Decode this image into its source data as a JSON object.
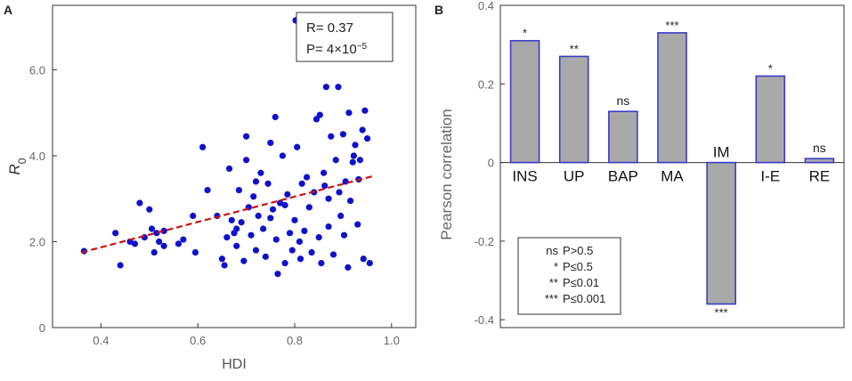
{
  "chart_data": [
    {
      "type": "scatter",
      "panel_label": "A",
      "xlabel": "HDI",
      "ylabel_main": "R",
      "ylabel_sub": "0",
      "xlim": [
        0.3,
        1.05
      ],
      "ylim": [
        0,
        7.5
      ],
      "xticks": [
        0.4,
        0.6,
        0.8,
        1.0
      ],
      "xtick_labels": [
        "0.4",
        "0.6",
        "0.8",
        "1.0"
      ],
      "yticks": [
        0,
        2,
        4,
        6
      ],
      "ytick_labels": [
        "0",
        "2.0",
        "4.0",
        "6.0"
      ],
      "point_color": "#1010cc",
      "fit_color": "#cc1111",
      "fit_line": {
        "x": [
          0.36,
          0.96
        ],
        "y": [
          1.75,
          3.52
        ]
      },
      "stats": {
        "r_text": "R= 0.37",
        "p_prefix": "P= 4×10",
        "p_exponent": "−5"
      },
      "points": [
        {
          "x": 0.365,
          "y": 1.78
        },
        {
          "x": 0.43,
          "y": 2.2
        },
        {
          "x": 0.44,
          "y": 1.45
        },
        {
          "x": 0.46,
          "y": 2.0
        },
        {
          "x": 0.47,
          "y": 1.95
        },
        {
          "x": 0.48,
          "y": 2.9
        },
        {
          "x": 0.49,
          "y": 2.1
        },
        {
          "x": 0.5,
          "y": 2.75
        },
        {
          "x": 0.505,
          "y": 2.3
        },
        {
          "x": 0.51,
          "y": 1.75
        },
        {
          "x": 0.515,
          "y": 2.2
        },
        {
          "x": 0.52,
          "y": 2.0
        },
        {
          "x": 0.53,
          "y": 2.25
        },
        {
          "x": 0.53,
          "y": 1.9
        },
        {
          "x": 0.56,
          "y": 1.95
        },
        {
          "x": 0.57,
          "y": 2.05
        },
        {
          "x": 0.59,
          "y": 2.6
        },
        {
          "x": 0.595,
          "y": 1.75
        },
        {
          "x": 0.61,
          "y": 4.2
        },
        {
          "x": 0.62,
          "y": 3.2
        },
        {
          "x": 0.64,
          "y": 2.6
        },
        {
          "x": 0.65,
          "y": 1.6
        },
        {
          "x": 0.655,
          "y": 1.45
        },
        {
          "x": 0.66,
          "y": 2.1
        },
        {
          "x": 0.665,
          "y": 3.7
        },
        {
          "x": 0.67,
          "y": 2.5
        },
        {
          "x": 0.675,
          "y": 2.2
        },
        {
          "x": 0.68,
          "y": 1.9
        },
        {
          "x": 0.685,
          "y": 3.2
        },
        {
          "x": 0.69,
          "y": 2.45
        },
        {
          "x": 0.695,
          "y": 1.55
        },
        {
          "x": 0.7,
          "y": 4.45
        },
        {
          "x": 0.7,
          "y": 3.9
        },
        {
          "x": 0.705,
          "y": 2.8
        },
        {
          "x": 0.71,
          "y": 2.15
        },
        {
          "x": 0.715,
          "y": 3.05
        },
        {
          "x": 0.72,
          "y": 1.8
        },
        {
          "x": 0.725,
          "y": 2.6
        },
        {
          "x": 0.73,
          "y": 3.6
        },
        {
          "x": 0.735,
          "y": 2.3
        },
        {
          "x": 0.74,
          "y": 1.65
        },
        {
          "x": 0.745,
          "y": 3.35
        },
        {
          "x": 0.75,
          "y": 4.3
        },
        {
          "x": 0.755,
          "y": 2.75
        },
        {
          "x": 0.76,
          "y": 4.9
        },
        {
          "x": 0.762,
          "y": 2.05
        },
        {
          "x": 0.765,
          "y": 1.25
        },
        {
          "x": 0.77,
          "y": 2.9
        },
        {
          "x": 0.775,
          "y": 4.0
        },
        {
          "x": 0.78,
          "y": 1.5
        },
        {
          "x": 0.785,
          "y": 3.1
        },
        {
          "x": 0.79,
          "y": 2.2
        },
        {
          "x": 0.795,
          "y": 1.8
        },
        {
          "x": 0.8,
          "y": 2.5
        },
        {
          "x": 0.802,
          "y": 7.15
        },
        {
          "x": 0.805,
          "y": 4.2
        },
        {
          "x": 0.81,
          "y": 2.0
        },
        {
          "x": 0.812,
          "y": 1.6
        },
        {
          "x": 0.815,
          "y": 3.35
        },
        {
          "x": 0.82,
          "y": 2.25
        },
        {
          "x": 0.825,
          "y": 3.5
        },
        {
          "x": 0.83,
          "y": 2.8
        },
        {
          "x": 0.835,
          "y": 1.75
        },
        {
          "x": 0.84,
          "y": 3.15
        },
        {
          "x": 0.845,
          "y": 4.85
        },
        {
          "x": 0.85,
          "y": 2.1
        },
        {
          "x": 0.852,
          "y": 4.95
        },
        {
          "x": 0.855,
          "y": 1.5
        },
        {
          "x": 0.86,
          "y": 3.6
        },
        {
          "x": 0.862,
          "y": 3.3
        },
        {
          "x": 0.865,
          "y": 5.6
        },
        {
          "x": 0.87,
          "y": 2.35
        },
        {
          "x": 0.875,
          "y": 4.45
        },
        {
          "x": 0.88,
          "y": 1.7
        },
        {
          "x": 0.885,
          "y": 3.9
        },
        {
          "x": 0.89,
          "y": 5.6
        },
        {
          "x": 0.892,
          "y": 3.15
        },
        {
          "x": 0.895,
          "y": 2.6
        },
        {
          "x": 0.9,
          "y": 4.5
        },
        {
          "x": 0.902,
          "y": 2.15
        },
        {
          "x": 0.905,
          "y": 3.4
        },
        {
          "x": 0.91,
          "y": 1.4
        },
        {
          "x": 0.912,
          "y": 5.0
        },
        {
          "x": 0.915,
          "y": 2.95
        },
        {
          "x": 0.92,
          "y": 3.85
        },
        {
          "x": 0.922,
          "y": 4.0
        },
        {
          "x": 0.925,
          "y": 4.25
        },
        {
          "x": 0.93,
          "y": 2.4
        },
        {
          "x": 0.932,
          "y": 3.45
        },
        {
          "x": 0.935,
          "y": 3.9
        },
        {
          "x": 0.94,
          "y": 4.6
        },
        {
          "x": 0.942,
          "y": 1.6
        },
        {
          "x": 0.945,
          "y": 5.05
        },
        {
          "x": 0.95,
          "y": 4.4
        },
        {
          "x": 0.955,
          "y": 1.5
        },
        {
          "x": 0.68,
          "y": 2.3
        },
        {
          "x": 0.72,
          "y": 3.4
        },
        {
          "x": 0.75,
          "y": 2.55
        },
        {
          "x": 0.78,
          "y": 2.85
        },
        {
          "x": 0.87,
          "y": 3.0
        }
      ]
    },
    {
      "type": "bar",
      "panel_label": "B",
      "ylabel": "Pearson correlation",
      "ylim": [
        -0.42,
        0.4
      ],
      "yticks": [
        -0.4,
        -0.2,
        0,
        0.2,
        0.4
      ],
      "ytick_labels": [
        "-0.4",
        "-0.2",
        "0",
        "0.2",
        "0.4"
      ],
      "bar_fill": "#a9a9a9",
      "bar_edge": "#3b3bc8",
      "categories": [
        "INS",
        "UP",
        "BAP",
        "MA",
        "IM",
        "I-E",
        "RE"
      ],
      "values": [
        0.31,
        0.27,
        0.13,
        0.33,
        -0.36,
        0.22,
        0.01
      ],
      "significance": [
        "*",
        "**",
        "ns",
        "***",
        "***",
        "*",
        "ns"
      ],
      "legend": [
        {
          "symbol": "ns",
          "text": "P>0.5"
        },
        {
          "symbol": "*",
          "text": "P≤0.5"
        },
        {
          "symbol": "**",
          "text": "P≤0.01"
        },
        {
          "symbol": "***",
          "text": "P≤0.001"
        }
      ]
    }
  ]
}
